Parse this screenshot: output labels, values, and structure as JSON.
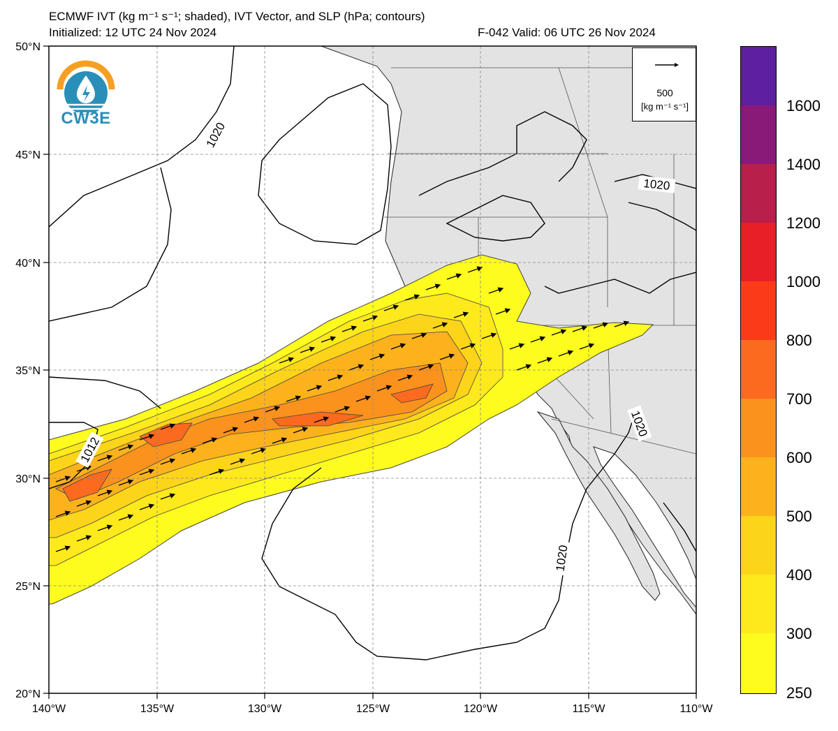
{
  "header": {
    "title_line1": "ECMWF IVT (kg m⁻¹ s⁻¹; shaded), IVT Vector, and SLP (hPa; contours)",
    "title_line2": "Initialized: 12 UTC 24 Nov 2024",
    "forecast": "F-042  Valid: 06 UTC 26 Nov 2024"
  },
  "logo": {
    "text": "CW3E",
    "icon": "water-drop-logo-icon"
  },
  "map": {
    "lat_ticks": [
      "50°N",
      "45°N",
      "40°N",
      "35°N",
      "30°N",
      "25°N",
      "20°N"
    ],
    "lon_ticks": [
      "140°W",
      "135°W",
      "130°W",
      "125°W",
      "120°W",
      "115°W",
      "110°W"
    ],
    "contour_labels": [
      "1020",
      "1020",
      "1020",
      "1020",
      "1012"
    ],
    "land_color": "#e3e3e3",
    "ocean_color": "#ffffff"
  },
  "vector_key": {
    "value": "500",
    "unit": "[kg m⁻¹ s⁻¹]",
    "icon": "arrow-right-icon"
  },
  "colorbar": {
    "labels": [
      "1600",
      "1400",
      "1200",
      "1000",
      "800",
      "700",
      "600",
      "500",
      "400",
      "300",
      "250"
    ],
    "colors": [
      "#5e1fa0",
      "#8a1a78",
      "#b81f4a",
      "#e81f27",
      "#fb3b17",
      "#fb6a1e",
      "#fb921d",
      "#fcb21c",
      "#fcd41a",
      "#fde91c",
      "#fefb1e"
    ]
  }
}
